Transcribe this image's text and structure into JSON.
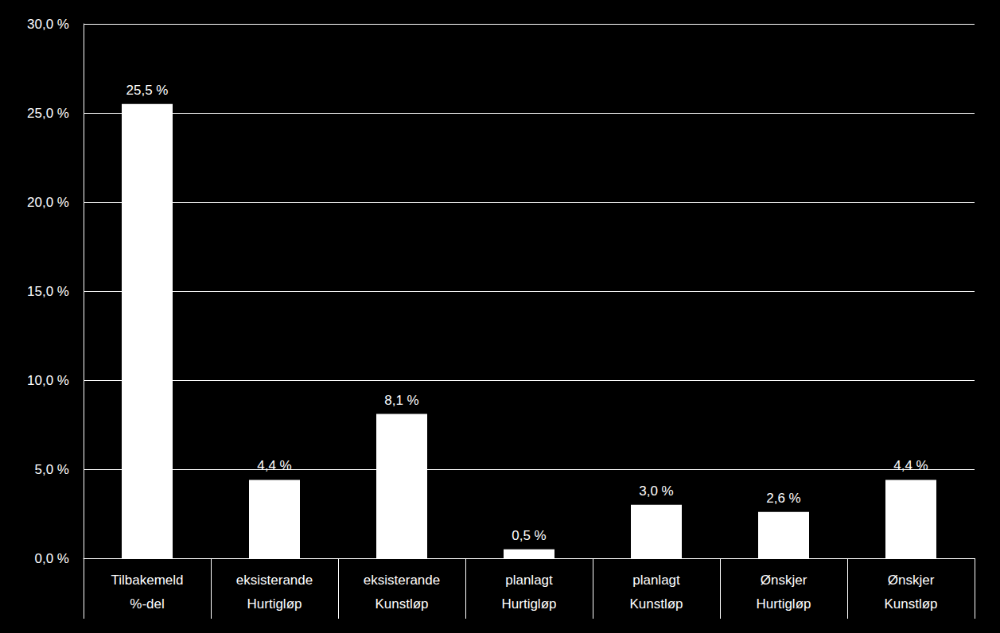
{
  "chart_data": {
    "type": "bar",
    "categories": [
      "Tilbakemeld\n%-del",
      "eksisterande\nHurtigløp",
      "eksisterande\nKunstløp",
      "planlagt\nHurtigløp",
      "planlagt\nKunstløp",
      "Ønskjer\nHurtigløp",
      "Ønskjer\nKunstløp"
    ],
    "values": [
      25.5,
      4.4,
      8.1,
      0.5,
      3.0,
      2.6,
      4.4
    ],
    "value_labels": [
      "25,5 %",
      "4,4 %",
      "8,1 %",
      "0,5 %",
      "3,0 %",
      "2,6 %",
      "4,4 %"
    ],
    "color": "#ffffff",
    "ylim": [
      0,
      30
    ],
    "yticks": [
      {
        "value": 0,
        "label": "0,0 %"
      },
      {
        "value": 5,
        "label": "5,0 %"
      },
      {
        "value": 10,
        "label": "10,0 %"
      },
      {
        "value": 15,
        "label": "15,0 %"
      },
      {
        "value": 20,
        "label": "20,0 %"
      },
      {
        "value": 25,
        "label": "25,0 %"
      },
      {
        "value": 30,
        "label": "30,0 %"
      }
    ],
    "grid": true,
    "data_labels": true
  }
}
